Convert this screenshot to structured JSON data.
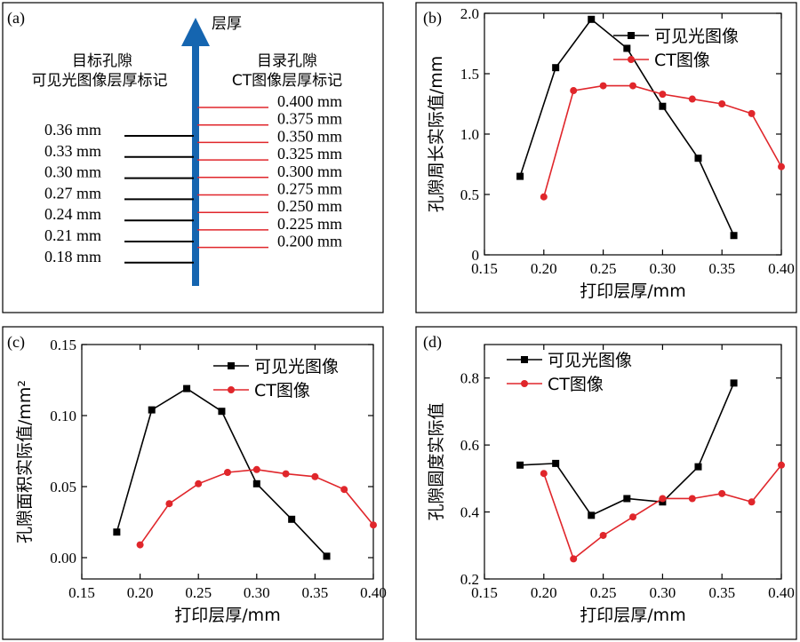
{
  "panel_labels": [
    "(a)",
    "(b)",
    "(c)",
    "(d)"
  ],
  "diagram": {
    "arrow_label": "层厚",
    "left_title_1": "目标孔隙",
    "left_title_2": "可见光图像层厚标记",
    "right_title_1": "目录孔隙",
    "right_title_2": "CT图像层厚标记",
    "left_marks": [
      "0.36 mm",
      "0.33 mm",
      "0.30 mm",
      "0.27 mm",
      "0.24 mm",
      "0.21 mm",
      "0.18 mm"
    ],
    "right_marks": [
      "0.400 mm",
      "0.375 mm",
      "0.350 mm",
      "0.325 mm",
      "0.300 mm",
      "0.275 mm",
      "0.250 mm",
      "0.225 mm",
      "0.200 mm"
    ],
    "colors": {
      "arrow": "#1565b0",
      "left_line": "#000000",
      "right_line": "#e0262b"
    }
  },
  "chart_data": [
    {
      "type": "line",
      "panel": "(b)",
      "xlabel": "打印层厚/mm",
      "ylabel": "孔隙周长实际值/mm",
      "xlim": [
        0.15,
        0.4
      ],
      "ylim": [
        0,
        2.0
      ],
      "xticks": [
        "0.15",
        "0.20",
        "0.25",
        "0.30",
        "0.35",
        "0.40"
      ],
      "yticks": [
        "0",
        "0.5",
        "1.0",
        "1.5",
        "2.0"
      ],
      "legend_position": "top-right",
      "series": [
        {
          "name": "可见光图像",
          "color": "#000000",
          "marker": "square",
          "x": [
            0.18,
            0.21,
            0.24,
            0.27,
            0.3,
            0.33,
            0.36
          ],
          "y": [
            0.65,
            1.55,
            1.95,
            1.71,
            1.23,
            0.8,
            0.16
          ]
        },
        {
          "name": "CT图像",
          "color": "#e0262b",
          "marker": "circle",
          "x": [
            0.2,
            0.225,
            0.25,
            0.275,
            0.3,
            0.325,
            0.35,
            0.375,
            0.4
          ],
          "y": [
            0.48,
            1.36,
            1.4,
            1.4,
            1.33,
            1.29,
            1.25,
            1.17,
            0.73
          ]
        }
      ]
    },
    {
      "type": "line",
      "panel": "(c)",
      "xlabel": "打印层厚/mm",
      "ylabel": "孔隙面积实际值/mm²",
      "xlim": [
        0.15,
        0.4
      ],
      "ylim": [
        -0.015,
        0.15
      ],
      "xticks": [
        "0.15",
        "0.20",
        "0.25",
        "0.30",
        "0.35",
        "0.40"
      ],
      "yticks": [
        "0.00",
        "0.05",
        "0.10",
        "0.15"
      ],
      "legend_position": "top-right",
      "series": [
        {
          "name": "可见光图像",
          "color": "#000000",
          "marker": "square",
          "x": [
            0.18,
            0.21,
            0.24,
            0.27,
            0.3,
            0.33,
            0.36
          ],
          "y": [
            0.018,
            0.104,
            0.119,
            0.103,
            0.052,
            0.027,
            0.001
          ]
        },
        {
          "name": "CT图像",
          "color": "#e0262b",
          "marker": "circle",
          "x": [
            0.2,
            0.225,
            0.25,
            0.275,
            0.3,
            0.325,
            0.35,
            0.375,
            0.4
          ],
          "y": [
            0.009,
            0.038,
            0.052,
            0.06,
            0.062,
            0.059,
            0.057,
            0.048,
            0.023
          ]
        }
      ]
    },
    {
      "type": "line",
      "panel": "(d)",
      "xlabel": "打印层厚/mm",
      "ylabel": "孔隙圆度实际值",
      "xlim": [
        0.15,
        0.4
      ],
      "ylim": [
        0.2,
        0.9
      ],
      "xticks": [
        "0.15",
        "0.20",
        "0.25",
        "0.30",
        "0.35",
        "0.40"
      ],
      "yticks": [
        "0.2",
        "0.4",
        "0.6",
        "0.8"
      ],
      "legend_position": "top-left",
      "series": [
        {
          "name": "可见光图像",
          "color": "#000000",
          "marker": "square",
          "x": [
            0.18,
            0.21,
            0.24,
            0.27,
            0.3,
            0.33,
            0.36
          ],
          "y": [
            0.54,
            0.545,
            0.39,
            0.44,
            0.43,
            0.535,
            0.785
          ]
        },
        {
          "name": "CT图像",
          "color": "#e0262b",
          "marker": "circle",
          "x": [
            0.2,
            0.225,
            0.25,
            0.275,
            0.3,
            0.325,
            0.35,
            0.375,
            0.4
          ],
          "y": [
            0.515,
            0.26,
            0.33,
            0.385,
            0.44,
            0.44,
            0.455,
            0.43,
            0.54
          ]
        }
      ]
    }
  ]
}
